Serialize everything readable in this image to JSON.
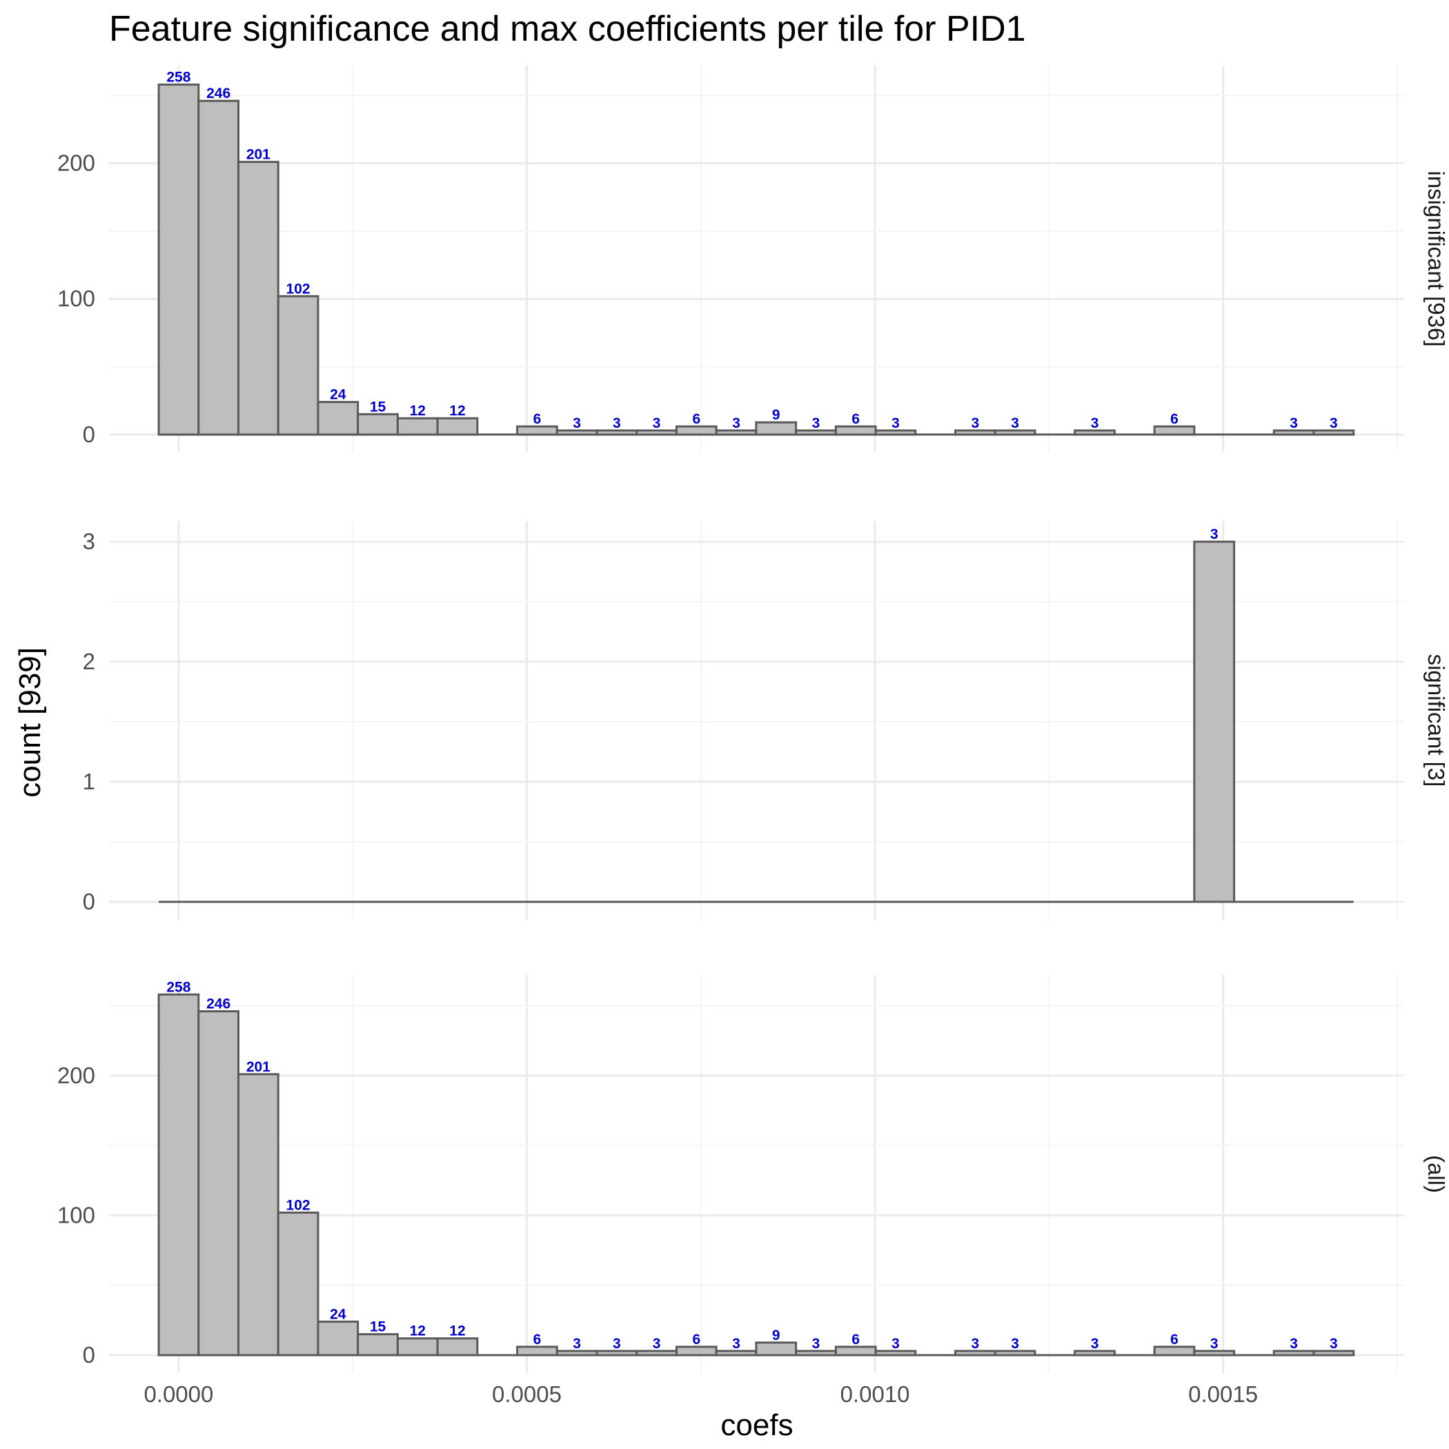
{
  "chart_data": {
    "type": "bar",
    "title": "Feature significance and max coefficients per tile for PID1",
    "xlabel": "coefs",
    "ylabel": "count [939]",
    "xlim": [
      -0.0001,
      0.00176
    ],
    "x_ticks": [
      "0.0000",
      "0.0005",
      "0.0010",
      "0.0015"
    ],
    "x_tick_values": [
      0,
      0.0005,
      0.001,
      0.0015
    ],
    "bin_width": 5.72e-05,
    "bin_centers": [
      0.0,
      5.72e-05,
      0.0001144,
      0.0001716,
      0.0002288,
      0.000286,
      0.0003432,
      0.0004004,
      0.0004576,
      0.0005148,
      0.000572,
      0.0006292,
      0.0006864,
      0.0007436,
      0.0008008,
      0.000858,
      0.0009152,
      0.0009724,
      0.0010296,
      0.0010868,
      0.001144,
      0.0012012,
      0.0012584,
      0.0013156,
      0.0013728,
      0.00143,
      0.0014872,
      0.0015444,
      0.0016016,
      0.0016588
    ],
    "grid": true,
    "panels": [
      {
        "label": "insignificant [936]",
        "ylim": [
          0,
          270
        ],
        "y_ticks": [
          0,
          100,
          200
        ],
        "counts": [
          258,
          246,
          201,
          102,
          24,
          15,
          12,
          12,
          0,
          6,
          3,
          3,
          3,
          6,
          3,
          9,
          3,
          6,
          3,
          0,
          3,
          3,
          0,
          3,
          0,
          6,
          0,
          0,
          3,
          3
        ]
      },
      {
        "label": "significant [3]",
        "ylim": [
          0,
          3.15
        ],
        "y_ticks": [
          0,
          1,
          2,
          3
        ],
        "counts": [
          0,
          0,
          0,
          0,
          0,
          0,
          0,
          0,
          0,
          0,
          0,
          0,
          0,
          0,
          0,
          0,
          0,
          0,
          0,
          0,
          0,
          0,
          0,
          0,
          0,
          0,
          3,
          0,
          0,
          0
        ]
      },
      {
        "label": "(all)",
        "ylim": [
          0,
          270
        ],
        "y_ticks": [
          0,
          100,
          200
        ],
        "counts": [
          258,
          246,
          201,
          102,
          24,
          15,
          12,
          12,
          0,
          6,
          3,
          3,
          3,
          6,
          3,
          9,
          3,
          6,
          3,
          0,
          3,
          3,
          0,
          3,
          0,
          6,
          3,
          0,
          3,
          3
        ]
      }
    ],
    "colors": {
      "bar_fill": "#bebebe",
      "bar_stroke": "#595959",
      "label": "#0000cd",
      "grid_major": "#ebebeb",
      "grid_minor": "#f4f4f4"
    }
  }
}
